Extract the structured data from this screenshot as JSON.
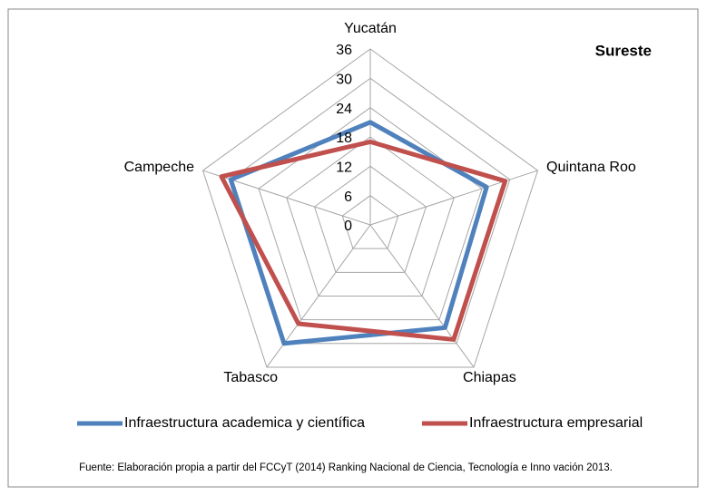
{
  "chart_data": {
    "type": "radar",
    "title": "Sureste",
    "categories": [
      "Yucatán",
      "Quintana Roo",
      "Chiapas",
      "Tabasco",
      "Campeche"
    ],
    "series": [
      {
        "name": "Infraestructura academica y científica",
        "color": "#4f81bd",
        "values": [
          21,
          25,
          26,
          30,
          30
        ]
      },
      {
        "name": "Infraestructura empresarial",
        "color": "#c0504d",
        "values": [
          17,
          29,
          29,
          25,
          32
        ]
      }
    ],
    "ylim": [
      0,
      36
    ],
    "yticks": [
      0,
      6,
      12,
      18,
      24,
      30,
      36
    ],
    "grid": true,
    "legend": "bottom",
    "source": "Fuente: Elaboración propia a partir del FCCyT (2014) Ranking Nacional de Ciencia, Tecnología e Inno vación 2013."
  }
}
